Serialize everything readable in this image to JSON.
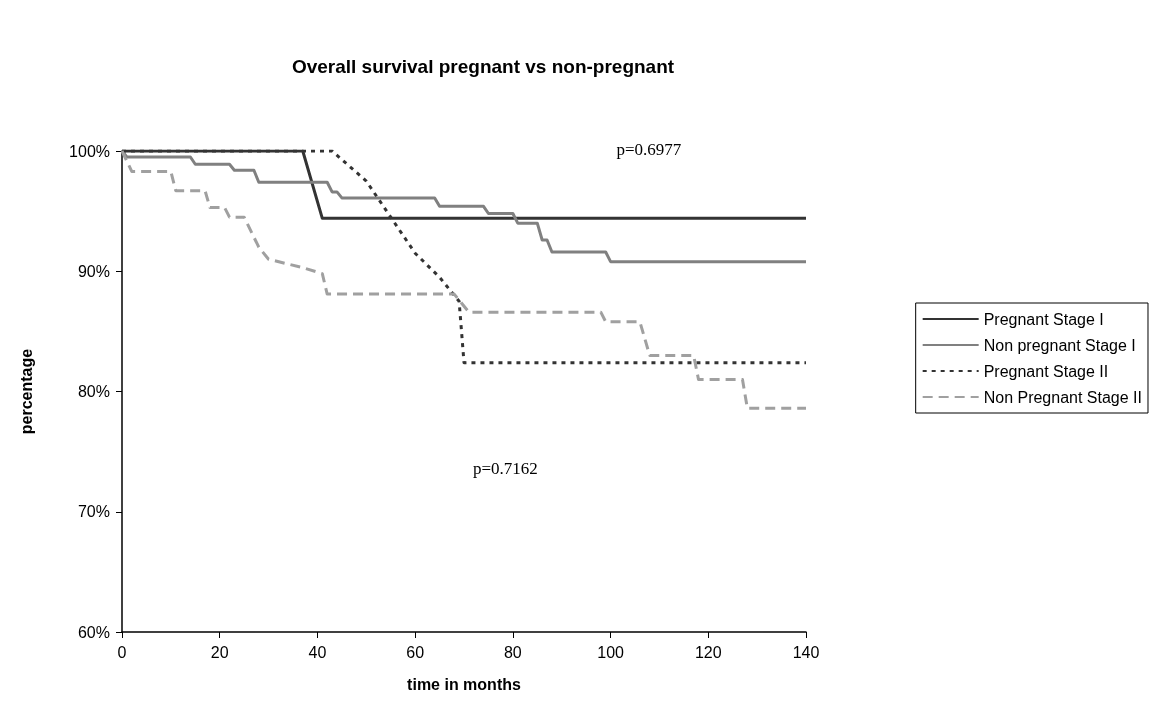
{
  "chart_data": {
    "type": "line",
    "title": "Overall survival pregnant vs non-pregnant",
    "xlabel": "time in months",
    "ylabel": "percentage",
    "xlim": [
      0,
      140
    ],
    "xticks": [
      0,
      20,
      40,
      60,
      80,
      100,
      120,
      140
    ],
    "ylim": [
      60,
      100
    ],
    "yticks": [
      {
        "value": 60,
        "label": "60%"
      },
      {
        "value": 70,
        "label": "70%"
      },
      {
        "value": 80,
        "label": "80%"
      },
      {
        "value": 90,
        "label": "90%"
      },
      {
        "value": 100,
        "label": "100%"
      }
    ],
    "grid": false,
    "legend": "right",
    "marker": "none",
    "annotations": [
      "p=0.6977",
      "p=0.7162"
    ],
    "series": [
      {
        "name": "Pregnant Stage I",
        "color": "#333333",
        "line_style": "solid",
        "x": [
          0,
          37,
          41,
          140
        ],
        "values": [
          100,
          100,
          94.4,
          94.4
        ]
      },
      {
        "name": "Non pregnant Stage I",
        "color": "#808080",
        "line_style": "solid",
        "x": [
          0,
          1,
          14,
          15,
          22,
          23,
          27,
          28,
          42,
          43,
          44,
          45,
          64,
          65,
          74,
          75,
          80,
          81,
          85,
          86,
          87,
          88,
          99,
          100,
          140
        ],
        "values": [
          100,
          99.5,
          99.5,
          98.9,
          98.9,
          98.4,
          98.4,
          97.4,
          97.4,
          96.6,
          96.6,
          96.1,
          96.1,
          95.4,
          95.4,
          94.8,
          94.8,
          94,
          94,
          92.6,
          92.6,
          91.6,
          91.6,
          90.8,
          90.8
        ]
      },
      {
        "name": "Pregnant Stage II",
        "color": "#333333",
        "line_style": "dotted",
        "x": [
          0,
          43,
          50,
          55,
          60,
          65,
          69,
          70,
          140
        ],
        "values": [
          100,
          100,
          97.5,
          94.5,
          91.5,
          89.5,
          87.5,
          82.4,
          82.4
        ]
      },
      {
        "name": "Non Pregnant Stage II",
        "color": "#a0a0a0",
        "line_style": "dashed",
        "x": [
          0,
          2,
          10,
          11,
          17,
          18,
          21,
          22,
          25,
          28,
          30,
          37,
          41,
          42,
          68,
          71,
          98,
          99,
          106,
          108,
          117,
          118,
          127,
          128,
          140
        ],
        "values": [
          100,
          98.3,
          98.3,
          96.7,
          96.7,
          95.3,
          95.3,
          94.5,
          94.5,
          92,
          91,
          90.3,
          89.8,
          88.1,
          88.1,
          86.6,
          86.6,
          85.8,
          85.8,
          83,
          83,
          81,
          81,
          78.6,
          78.6
        ]
      }
    ]
  }
}
